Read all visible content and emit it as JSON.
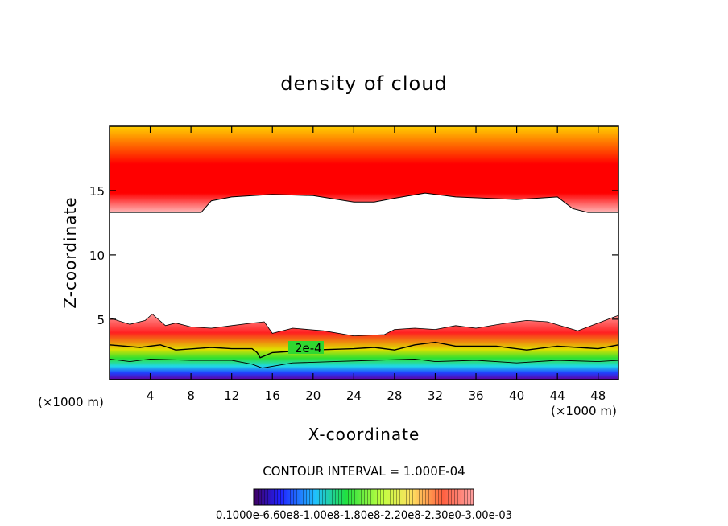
{
  "chart_data": {
    "type": "contour",
    "title": "density of cloud",
    "xlabel": "X-coordinate",
    "ylabel": "Z-coordinate",
    "x_unit_left": "(×1000 m)",
    "x_unit_right": "(×1000 m)",
    "xlim": [
      0,
      50
    ],
    "ylim": [
      0.3,
      20
    ],
    "x_ticks": [
      4,
      8,
      12,
      16,
      20,
      24,
      28,
      32,
      36,
      40,
      44,
      48
    ],
    "x_tick_labels": [
      "4",
      "8",
      "12",
      "16",
      "20",
      "24",
      "28",
      "32",
      "36",
      "40",
      "44",
      "48"
    ],
    "y_ticks": [
      5,
      10,
      15
    ],
    "y_tick_labels": [
      "5",
      "10",
      "15"
    ],
    "contour_label": "2e-4",
    "contour_interval_text": "CONTOUR INTERVAL = 1.000E-04",
    "colorbar_labels_text": "0.1000e-6.60e8-1.00e8-1.80e8-2.20e8-2.30e0-3.00e-03",
    "colors": {
      "upper_top": "#ffd800",
      "upper_core": "#ff0000",
      "upper_edge": "#ffb8b8",
      "lower_edge": "#ffa0a0",
      "lower_red": "#ff2020",
      "lower_yellow": "#e0e000",
      "lower_green": "#30e030",
      "lower_cyan": "#20d8e8",
      "lower_blue": "#2040ff",
      "lower_violet": "#6000a0"
    },
    "upper_layer": {
      "base_z": [
        [
          0,
          13.3
        ],
        [
          9,
          13.3
        ],
        [
          10,
          14.2
        ],
        [
          12,
          14.5
        ],
        [
          16,
          14.7
        ],
        [
          20,
          14.6
        ],
        [
          24,
          14.1
        ],
        [
          26,
          14.1
        ],
        [
          28,
          14.4
        ],
        [
          31,
          14.8
        ],
        [
          34,
          14.5
        ],
        [
          40,
          14.3
        ],
        [
          44,
          14.5
        ],
        [
          45.5,
          13.6
        ],
        [
          47,
          13.3
        ],
        [
          50,
          13.3
        ]
      ]
    },
    "lower_layer": {
      "top_z": [
        [
          0,
          5.1
        ],
        [
          2,
          4.6
        ],
        [
          3.5,
          4.9
        ],
        [
          4.2,
          5.4
        ],
        [
          5.5,
          4.5
        ],
        [
          6.5,
          4.7
        ],
        [
          8,
          4.4
        ],
        [
          10,
          4.3
        ],
        [
          12,
          4.5
        ],
        [
          14,
          4.7
        ],
        [
          15.2,
          4.8
        ],
        [
          16,
          3.9
        ],
        [
          18,
          4.3
        ],
        [
          21,
          4.1
        ],
        [
          24,
          3.7
        ],
        [
          27,
          3.8
        ],
        [
          28,
          4.2
        ],
        [
          30,
          4.3
        ],
        [
          32,
          4.2
        ],
        [
          34,
          4.5
        ],
        [
          36,
          4.3
        ],
        [
          39,
          4.7
        ],
        [
          41,
          4.9
        ],
        [
          43,
          4.8
        ],
        [
          46,
          4.1
        ],
        [
          48,
          4.7
        ],
        [
          50,
          5.3
        ]
      ],
      "contour_2e4_z": [
        [
          0,
          3.0
        ],
        [
          3,
          2.8
        ],
        [
          5,
          3.0
        ],
        [
          6.5,
          2.6
        ],
        [
          10,
          2.8
        ],
        [
          12,
          2.7
        ],
        [
          14,
          2.7
        ],
        [
          14.5,
          2.4
        ],
        [
          14.8,
          2.0
        ],
        [
          16,
          2.4
        ],
        [
          20,
          2.6
        ],
        [
          24,
          2.7
        ],
        [
          26,
          2.8
        ],
        [
          28,
          2.6
        ],
        [
          30,
          3.0
        ],
        [
          32,
          3.2
        ],
        [
          34,
          2.9
        ],
        [
          38,
          2.9
        ],
        [
          41,
          2.6
        ],
        [
          44,
          2.9
        ],
        [
          46,
          2.8
        ],
        [
          48,
          2.7
        ],
        [
          50,
          3.0
        ]
      ],
      "contour_1e4_z": [
        [
          0,
          1.9
        ],
        [
          2,
          1.7
        ],
        [
          4,
          1.9
        ],
        [
          8,
          1.8
        ],
        [
          12,
          1.8
        ],
        [
          14,
          1.5
        ],
        [
          15,
          1.2
        ],
        [
          18,
          1.6
        ],
        [
          22,
          1.7
        ],
        [
          26,
          1.8
        ],
        [
          30,
          1.9
        ],
        [
          32,
          1.7
        ],
        [
          36,
          1.8
        ],
        [
          40,
          1.6
        ],
        [
          44,
          1.8
        ],
        [
          48,
          1.7
        ],
        [
          50,
          1.8
        ]
      ]
    }
  }
}
